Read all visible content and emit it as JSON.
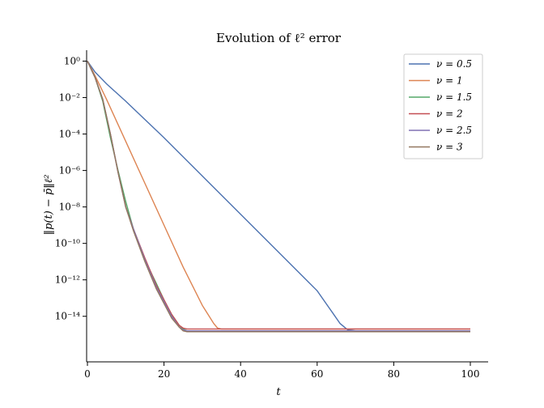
{
  "chart_data": {
    "type": "line",
    "title": "Evolution of ℓ² error",
    "xlabel": "t",
    "ylabel": "‖p(t) − p̄‖ℓ²",
    "xlim": [
      0,
      100
    ],
    "ylim_log10": [
      -16.5,
      0.6
    ],
    "yscale": "log",
    "x_ticks": [
      0,
      20,
      40,
      60,
      80,
      100
    ],
    "y_tick_exponents": [
      0,
      -2,
      -4,
      -6,
      -8,
      -10,
      -12,
      -14
    ],
    "y_tick_labels": [
      "10⁰",
      "10⁻²",
      "10⁻⁴",
      "10⁻⁶",
      "10⁻⁸",
      "10⁻¹⁰",
      "10⁻¹²",
      "10⁻¹⁴"
    ],
    "grid": false,
    "legend_position": "top-right",
    "series": [
      {
        "name": "ν = 0.5",
        "color": "#4c72b0",
        "x": [
          0,
          2,
          5,
          10,
          20,
          30,
          40,
          50,
          60,
          64,
          66,
          68,
          70,
          73,
          100
        ],
        "log10_y": [
          0,
          -0.6,
          -1.25,
          -2.2,
          -4.2,
          -6.3,
          -8.4,
          -10.5,
          -12.6,
          -13.8,
          -14.4,
          -14.75,
          -14.8,
          -14.85,
          -14.85
        ]
      },
      {
        "name": "ν = 1",
        "color": "#dd8452",
        "x": [
          0,
          2,
          5,
          10,
          15,
          20,
          25,
          30,
          33,
          34,
          35,
          36,
          100
        ],
        "log10_y": [
          0,
          -0.8,
          -2.1,
          -4.4,
          -6.7,
          -9.0,
          -11.3,
          -13.4,
          -14.4,
          -14.65,
          -14.7,
          -14.7,
          -14.7
        ]
      },
      {
        "name": "ν = 1.5",
        "color": "#55a868",
        "x": [
          0,
          2,
          4,
          6,
          8,
          10,
          12,
          15,
          18,
          20,
          22,
          24,
          25,
          26,
          27,
          100
        ],
        "log10_y": [
          0,
          -0.9,
          -2.2,
          -4.2,
          -6.0,
          -7.7,
          -9.2,
          -10.9,
          -12.2,
          -13.1,
          -13.9,
          -14.5,
          -14.7,
          -14.8,
          -14.8,
          -14.8
        ]
      },
      {
        "name": "ν = 2",
        "color": "#c44e52",
        "x": [
          0,
          2,
          4,
          6,
          8,
          10,
          12,
          15,
          18,
          20,
          22,
          24,
          25,
          26,
          27,
          100
        ],
        "log10_y": [
          0,
          -0.9,
          -2.1,
          -4.0,
          -6.1,
          -8.0,
          -9.2,
          -10.8,
          -12.3,
          -13.1,
          -13.9,
          -14.5,
          -14.65,
          -14.7,
          -14.7,
          -14.7
        ]
      },
      {
        "name": "ν = 2.5",
        "color": "#8172b3",
        "x": [
          0,
          2,
          4,
          6,
          8,
          10,
          12,
          15,
          18,
          20,
          22,
          24,
          25,
          26,
          27,
          100
        ],
        "log10_y": [
          0,
          -0.9,
          -2.1,
          -4.0,
          -6.1,
          -8.0,
          -9.2,
          -10.9,
          -12.4,
          -13.2,
          -14.0,
          -14.6,
          -14.75,
          -14.8,
          -14.8,
          -14.8
        ]
      },
      {
        "name": "ν = 3",
        "color": "#937860",
        "x": [
          0,
          2,
          4,
          6,
          8,
          10,
          12,
          15,
          18,
          20,
          22,
          24,
          25,
          26,
          27,
          100
        ],
        "log10_y": [
          0,
          -0.9,
          -2.1,
          -4.0,
          -6.1,
          -8.0,
          -9.3,
          -11.0,
          -12.5,
          -13.3,
          -14.1,
          -14.6,
          -14.8,
          -14.85,
          -14.85,
          -14.85
        ]
      }
    ]
  }
}
